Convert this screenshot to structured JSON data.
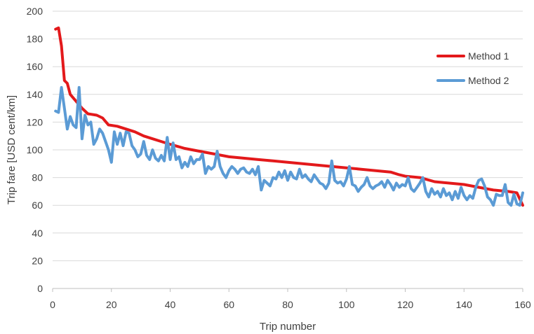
{
  "chart_data": {
    "type": "line",
    "xlabel": "Trip number",
    "ylabel": "Trip fare [USD cent/km]",
    "xlim": [
      0,
      160
    ],
    "ylim": [
      0,
      200
    ],
    "x_ticks": [
      0,
      20,
      40,
      60,
      80,
      100,
      120,
      140,
      160
    ],
    "y_ticks": [
      0,
      20,
      40,
      60,
      80,
      100,
      120,
      140,
      160,
      180,
      200
    ],
    "grid": "horizontal",
    "legend_position": "right",
    "series": [
      {
        "name": "Method 1",
        "color": "#e3191b",
        "points": [
          [
            1,
            187
          ],
          [
            2,
            188
          ],
          [
            3,
            175
          ],
          [
            4,
            150
          ],
          [
            5,
            148
          ],
          [
            6,
            140
          ],
          [
            8,
            135
          ],
          [
            10,
            130
          ],
          [
            12,
            126
          ],
          [
            15,
            125
          ],
          [
            17,
            123
          ],
          [
            19,
            118
          ],
          [
            22,
            117
          ],
          [
            25,
            115
          ],
          [
            28,
            113
          ],
          [
            31,
            110
          ],
          [
            34,
            108
          ],
          [
            37,
            106
          ],
          [
            40,
            104
          ],
          [
            45,
            101
          ],
          [
            50,
            99
          ],
          [
            55,
            97
          ],
          [
            60,
            95
          ],
          [
            65,
            94
          ],
          [
            70,
            93
          ],
          [
            75,
            92
          ],
          [
            80,
            91
          ],
          [
            85,
            90
          ],
          [
            90,
            89
          ],
          [
            95,
            88
          ],
          [
            100,
            87
          ],
          [
            105,
            86
          ],
          [
            110,
            85
          ],
          [
            115,
            84
          ],
          [
            118,
            82
          ],
          [
            120,
            81
          ],
          [
            125,
            80
          ],
          [
            130,
            77
          ],
          [
            135,
            76
          ],
          [
            140,
            75
          ],
          [
            145,
            73
          ],
          [
            150,
            71
          ],
          [
            155,
            70
          ],
          [
            158,
            69
          ],
          [
            160,
            60
          ]
        ]
      },
      {
        "name": "Method 2",
        "color": "#5b9bd5",
        "points": [
          [
            1,
            128
          ],
          [
            2,
            127
          ],
          [
            3,
            145
          ],
          [
            4,
            130
          ],
          [
            5,
            115
          ],
          [
            6,
            124
          ],
          [
            7,
            118
          ],
          [
            8,
            116
          ],
          [
            9,
            145
          ],
          [
            10,
            108
          ],
          [
            11,
            125
          ],
          [
            12,
            118
          ],
          [
            13,
            120
          ],
          [
            14,
            104
          ],
          [
            15,
            108
          ],
          [
            16,
            115
          ],
          [
            17,
            112
          ],
          [
            18,
            106
          ],
          [
            19,
            100
          ],
          [
            20,
            91
          ],
          [
            21,
            113
          ],
          [
            22,
            104
          ],
          [
            23,
            112
          ],
          [
            24,
            103
          ],
          [
            25,
            113
          ],
          [
            26,
            112
          ],
          [
            27,
            103
          ],
          [
            28,
            100
          ],
          [
            29,
            95
          ],
          [
            30,
            97
          ],
          [
            31,
            106
          ],
          [
            32,
            96
          ],
          [
            33,
            93
          ],
          [
            34,
            100
          ],
          [
            35,
            94
          ],
          [
            36,
            92
          ],
          [
            37,
            96
          ],
          [
            38,
            92
          ],
          [
            39,
            109
          ],
          [
            40,
            93
          ],
          [
            41,
            105
          ],
          [
            42,
            93
          ],
          [
            43,
            95
          ],
          [
            44,
            87
          ],
          [
            45,
            91
          ],
          [
            46,
            88
          ],
          [
            47,
            95
          ],
          [
            48,
            90
          ],
          [
            49,
            93
          ],
          [
            50,
            93
          ],
          [
            51,
            97
          ],
          [
            52,
            83
          ],
          [
            53,
            88
          ],
          [
            54,
            86
          ],
          [
            55,
            88
          ],
          [
            56,
            99
          ],
          [
            57,
            88
          ],
          [
            58,
            83
          ],
          [
            59,
            80
          ],
          [
            60,
            85
          ],
          [
            61,
            88
          ],
          [
            62,
            86
          ],
          [
            63,
            83
          ],
          [
            64,
            86
          ],
          [
            65,
            87
          ],
          [
            66,
            84
          ],
          [
            67,
            83
          ],
          [
            68,
            86
          ],
          [
            69,
            82
          ],
          [
            70,
            88
          ],
          [
            71,
            71
          ],
          [
            72,
            78
          ],
          [
            73,
            76
          ],
          [
            74,
            74
          ],
          [
            75,
            80
          ],
          [
            76,
            79
          ],
          [
            77,
            84
          ],
          [
            78,
            80
          ],
          [
            79,
            85
          ],
          [
            80,
            78
          ],
          [
            81,
            84
          ],
          [
            82,
            80
          ],
          [
            83,
            79
          ],
          [
            84,
            86
          ],
          [
            85,
            80
          ],
          [
            86,
            82
          ],
          [
            87,
            79
          ],
          [
            88,
            77
          ],
          [
            89,
            82
          ],
          [
            90,
            79
          ],
          [
            91,
            76
          ],
          [
            92,
            75
          ],
          [
            93,
            72
          ],
          [
            94,
            76
          ],
          [
            95,
            92
          ],
          [
            96,
            78
          ],
          [
            97,
            76
          ],
          [
            98,
            77
          ],
          [
            99,
            74
          ],
          [
            100,
            79
          ],
          [
            101,
            88
          ],
          [
            102,
            75
          ],
          [
            103,
            74
          ],
          [
            104,
            70
          ],
          [
            105,
            73
          ],
          [
            106,
            75
          ],
          [
            107,
            80
          ],
          [
            108,
            74
          ],
          [
            109,
            72
          ],
          [
            110,
            74
          ],
          [
            111,
            75
          ],
          [
            112,
            77
          ],
          [
            113,
            73
          ],
          [
            114,
            78
          ],
          [
            115,
            75
          ],
          [
            116,
            71
          ],
          [
            117,
            76
          ],
          [
            118,
            73
          ],
          [
            119,
            75
          ],
          [
            120,
            74
          ],
          [
            121,
            80
          ],
          [
            122,
            72
          ],
          [
            123,
            70
          ],
          [
            124,
            73
          ],
          [
            125,
            76
          ],
          [
            126,
            80
          ],
          [
            127,
            70
          ],
          [
            128,
            66
          ],
          [
            129,
            72
          ],
          [
            130,
            68
          ],
          [
            131,
            70
          ],
          [
            132,
            66
          ],
          [
            133,
            72
          ],
          [
            134,
            67
          ],
          [
            135,
            69
          ],
          [
            136,
            64
          ],
          [
            137,
            70
          ],
          [
            138,
            65
          ],
          [
            139,
            73
          ],
          [
            140,
            67
          ],
          [
            141,
            64
          ],
          [
            142,
            67
          ],
          [
            143,
            65
          ],
          [
            144,
            73
          ],
          [
            145,
            78
          ],
          [
            146,
            79
          ],
          [
            147,
            74
          ],
          [
            148,
            66
          ],
          [
            149,
            64
          ],
          [
            150,
            60
          ],
          [
            151,
            68
          ],
          [
            152,
            67
          ],
          [
            153,
            67
          ],
          [
            154,
            75
          ],
          [
            155,
            62
          ],
          [
            156,
            60
          ],
          [
            157,
            68
          ],
          [
            158,
            61
          ],
          [
            159,
            60
          ],
          [
            160,
            69
          ]
        ]
      }
    ]
  }
}
